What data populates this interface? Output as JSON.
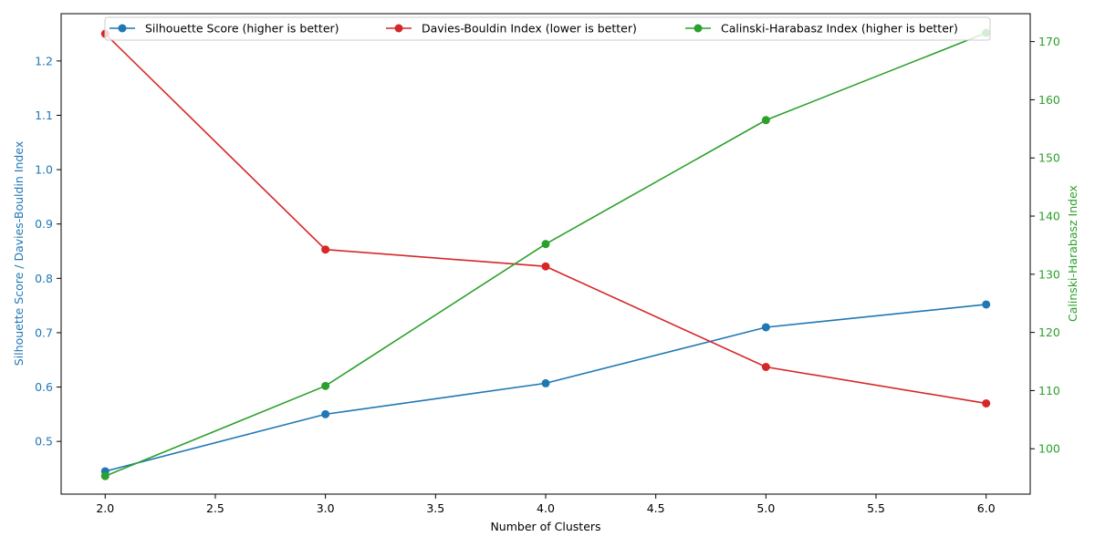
{
  "chart_data": {
    "type": "line",
    "x": [
      2,
      3,
      4,
      5,
      6
    ],
    "xlabel": "Number of Clusters",
    "xlim": [
      1.8,
      6.2
    ],
    "xticks": [
      "2.0",
      "2.5",
      "3.0",
      "3.5",
      "4.0",
      "4.5",
      "5.0",
      "5.5",
      "6.0"
    ],
    "ylabel_left": "Silhouette Score / Davies-Bouldin Index",
    "ylim_left": [
      0.403,
      1.287
    ],
    "yticks_left": [
      "0.5",
      "0.6",
      "0.7",
      "0.8",
      "0.9",
      "1.0",
      "1.1",
      "1.2"
    ],
    "ylabel_right": "Calinski-Harabasz Index",
    "ylim_right": [
      92.2,
      174.8
    ],
    "yticks_right": [
      "100",
      "110",
      "120",
      "130",
      "140",
      "150",
      "160",
      "170"
    ],
    "grid": false,
    "legend_position": "top-center",
    "series": [
      {
        "name": "Silhouette Score (higher is better)",
        "axis": "left",
        "color": "#1f77b4",
        "values": [
          0.445,
          0.55,
          0.607,
          0.71,
          0.752
        ]
      },
      {
        "name": "Davies-Bouldin Index (lower is better)",
        "axis": "left",
        "color": "#d62728",
        "values": [
          1.25,
          0.853,
          0.822,
          0.637,
          0.57
        ]
      },
      {
        "name": "Calinski-Harabasz Index (higher is better)",
        "axis": "right",
        "color": "#2ca02c",
        "values": [
          95.3,
          110.8,
          135.2,
          156.5,
          171.5
        ]
      }
    ],
    "left_axis_color": "#1f77b4",
    "right_axis_color": "#2ca02c"
  }
}
